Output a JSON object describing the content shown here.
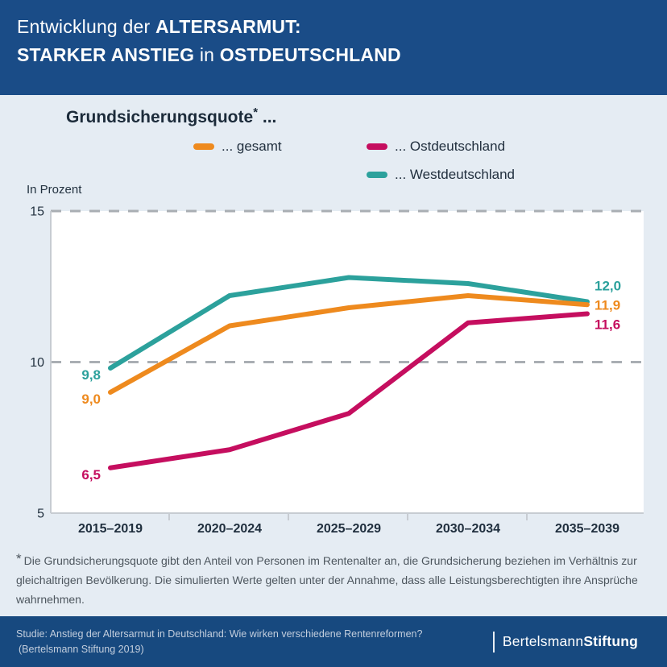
{
  "palette": {
    "navy": "#1A4C87",
    "footer_navy": "#17497F",
    "page_background": "#E5ECF3",
    "plot_background": "#FFFFFF",
    "grid_dash_gray": "#A9AEB3",
    "axis_gray": "#C7CCD2",
    "dark_text": "#1C2B3A",
    "footnote_text": "#4D565E"
  },
  "header": {
    "line1_regular": "Entwicklung der",
    "line1_bold": "ALTERSARMUT:",
    "line2_bold_a": "STARKER ANSTIEG",
    "line2_regular": "in",
    "line2_bold_b": "OSTDEUTSCHLAND"
  },
  "chart": {
    "title_main": "Grundsicherungsquote",
    "title_star": "*",
    "title_dots": " ...",
    "unit_label": "In Prozent"
  },
  "chart_data": {
    "type": "line",
    "title": "Grundsicherungsquote* ...",
    "ylabel": "In Prozent",
    "categories": [
      "2015–2019",
      "2020–2024",
      "2025–2029",
      "2030–2034",
      "2035–2039"
    ],
    "series": [
      {
        "name": "gesamt",
        "legend_label": "... gesamt",
        "color": "#EE8A1E",
        "values": [
          9.0,
          11.2,
          11.8,
          12.2,
          11.9
        ],
        "first_label": "9,0",
        "last_label": "11,9"
      },
      {
        "name": "Ostdeutschland",
        "legend_label": "... Ostdeutschland",
        "color": "#C50E5F",
        "values": [
          6.5,
          7.1,
          8.3,
          11.3,
          11.6
        ],
        "first_label": "6,5",
        "last_label": "11,6"
      },
      {
        "name": "Westdeutschland",
        "legend_label": "... Westdeutschland",
        "color": "#2CA19C",
        "values": [
          9.8,
          12.2,
          12.8,
          12.6,
          12.0
        ],
        "first_label": "9,8",
        "last_label": "12,0"
      }
    ],
    "ylim": [
      5,
      15
    ],
    "yticks": [
      15,
      10,
      5
    ],
    "dashed_gridlines_at": [
      15,
      10
    ],
    "grid": "horizontal-dashed",
    "legend_position": "top"
  },
  "footnote": {
    "star": "*",
    "text": "Die Grundsicherungsquote gibt den Anteil von Personen im Rentenalter an, die Grundsicherung beziehen im Verhältnis zur gleichaltrigen Bevölkerung. Die simulierten Werte gelten unter der Annahme, dass alle Leistungsberechtigten ihre Ansprüche wahrnehmen."
  },
  "footer": {
    "source_line1": "Studie: Anstieg der Altersarmut in Deutschland: Wie wirken verschiedene Rentenreformen?",
    "source_line2": "(Bertelsmann Stiftung 2019)",
    "brand_regular": "Bertelsmann",
    "brand_bold": "Stiftung"
  }
}
